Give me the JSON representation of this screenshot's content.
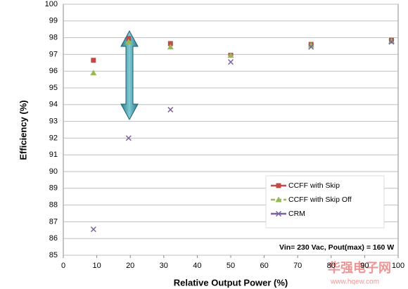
{
  "chart_data": {
    "type": "line",
    "xlabel": "Relative Output Power (%)",
    "ylabel": "Efficiency (%)",
    "annotation": "Vin= 230 Vac, Pout(max) = 160 W",
    "watermark": "华强电子网",
    "watermark_url": "www.hqew.com",
    "xlim": [
      0,
      100
    ],
    "xticks": [
      0,
      10,
      20,
      30,
      40,
      50,
      60,
      70,
      80,
      90,
      100
    ],
    "ylim": [
      85,
      100
    ],
    "yticks": [
      85,
      86,
      87,
      88,
      89,
      90,
      91,
      92,
      93,
      94,
      95,
      96,
      97,
      98,
      99,
      100
    ],
    "grid": true,
    "legend": "right",
    "series": [
      {
        "name": "CCFF with Skip",
        "color": "#be4b48",
        "marker": "square",
        "dash": false,
        "x": [
          9,
          19.5,
          32,
          50,
          74,
          98
        ],
        "values": [
          96.65,
          97.95,
          97.65,
          96.95,
          97.6,
          97.85
        ]
      },
      {
        "name": "CCFF with Skip Off",
        "color": "#98b954",
        "marker": "triangle",
        "dash": true,
        "x": [
          9,
          19.5,
          32,
          50,
          74,
          98
        ],
        "values": [
          95.9,
          97.75,
          97.45,
          96.95,
          97.55,
          97.8
        ]
      },
      {
        "name": "CRM",
        "color": "#7d60a0",
        "marker": "x",
        "dash": false,
        "x": [
          9,
          19.5,
          32,
          50,
          74,
          98
        ],
        "values": [
          86.55,
          92.0,
          93.7,
          96.55,
          97.45,
          97.75
        ]
      }
    ]
  }
}
